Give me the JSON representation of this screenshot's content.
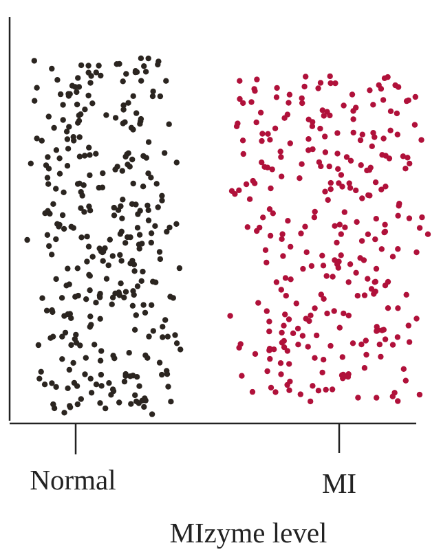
{
  "chart_data": {
    "type": "scatter",
    "title": "",
    "xlabel": "MIzyme level",
    "ylabel": "",
    "categories": [
      "Normal",
      "MI"
    ],
    "grid": false,
    "legend": "none",
    "series": [
      {
        "category": "Normal",
        "color": "#2b2520",
        "points": 330
      },
      {
        "category": "MI",
        "color": "#b0113a",
        "points": 300
      }
    ]
  }
}
